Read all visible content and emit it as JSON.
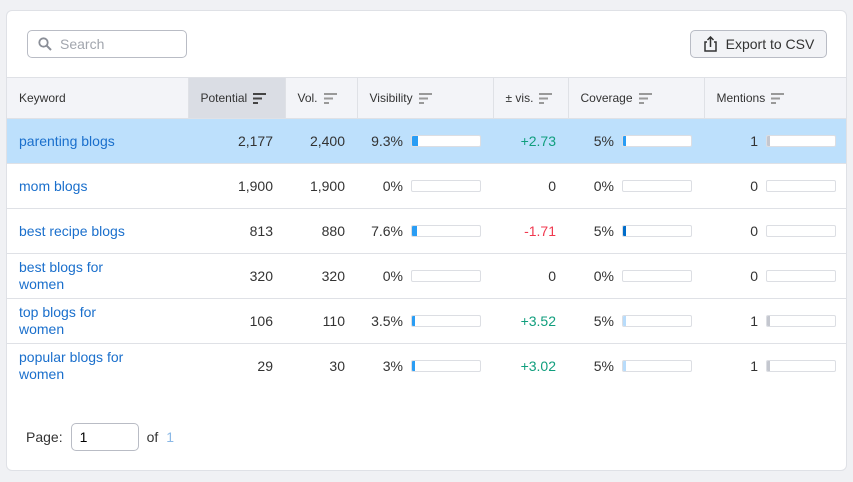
{
  "search": {
    "placeholder": "Search"
  },
  "toolbar": {
    "export_label": "Export to CSV"
  },
  "columns": [
    "Keyword",
    "Potential",
    "Vol.",
    "Visibility",
    "± vis.",
    "Coverage",
    "Mentions"
  ],
  "rows": [
    {
      "keyword": "parenting blogs",
      "potential": "2,177",
      "vol": "2,400",
      "visibility": "9.3%",
      "vis_fill": 0.093,
      "vis_change": "+2.73",
      "trend": "pos",
      "coverage": "5%",
      "cov_fill": 0.05,
      "cov_color": "#2a9df4",
      "mentions": "1",
      "men_fill": 0.03,
      "selected": true
    },
    {
      "keyword": "mom blogs",
      "potential": "1,900",
      "vol": "1,900",
      "visibility": "0%",
      "vis_fill": 0,
      "vis_change": "0",
      "trend": "zero",
      "coverage": "0%",
      "cov_fill": 0,
      "cov_color": "#2a9df4",
      "mentions": "0",
      "men_fill": 0
    },
    {
      "keyword": "best recipe blogs",
      "potential": "813",
      "vol": "880",
      "visibility": "7.6%",
      "vis_fill": 0.076,
      "vis_change": "-1.71",
      "trend": "neg",
      "coverage": "5%",
      "cov_fill": 0.05,
      "cov_color": "#006dca",
      "mentions": "0",
      "men_fill": 0
    },
    {
      "keyword": "best blogs for women",
      "potential": "320",
      "vol": "320",
      "visibility": "0%",
      "vis_fill": 0,
      "vis_change": "0",
      "trend": "zero",
      "coverage": "0%",
      "cov_fill": 0,
      "cov_color": "#2a9df4",
      "mentions": "0",
      "men_fill": 0
    },
    {
      "keyword": "top blogs for women",
      "potential": "106",
      "vol": "110",
      "visibility": "3.5%",
      "vis_fill": 0.035,
      "vis_change": "+3.52",
      "trend": "pos",
      "coverage": "5%",
      "cov_fill": 0.05,
      "cov_color": "#b8dcfb",
      "mentions": "1",
      "men_fill": 0.03
    },
    {
      "keyword": "popular blogs for women",
      "potential": "29",
      "vol": "30",
      "visibility": "3%",
      "vis_fill": 0.03,
      "vis_change": "+3.02",
      "trend": "pos",
      "coverage": "5%",
      "cov_fill": 0.05,
      "cov_color": "#b8dcfb",
      "mentions": "1",
      "men_fill": 0.03
    }
  ],
  "colors": {
    "vis_bar": "#2a9df4",
    "mentions_bar": "#c4c7cf",
    "selected_row": "#bde0fc",
    "link": "#1a6fcc"
  },
  "pager": {
    "label": "Page:",
    "value": "1",
    "of": "of",
    "total": "1"
  }
}
